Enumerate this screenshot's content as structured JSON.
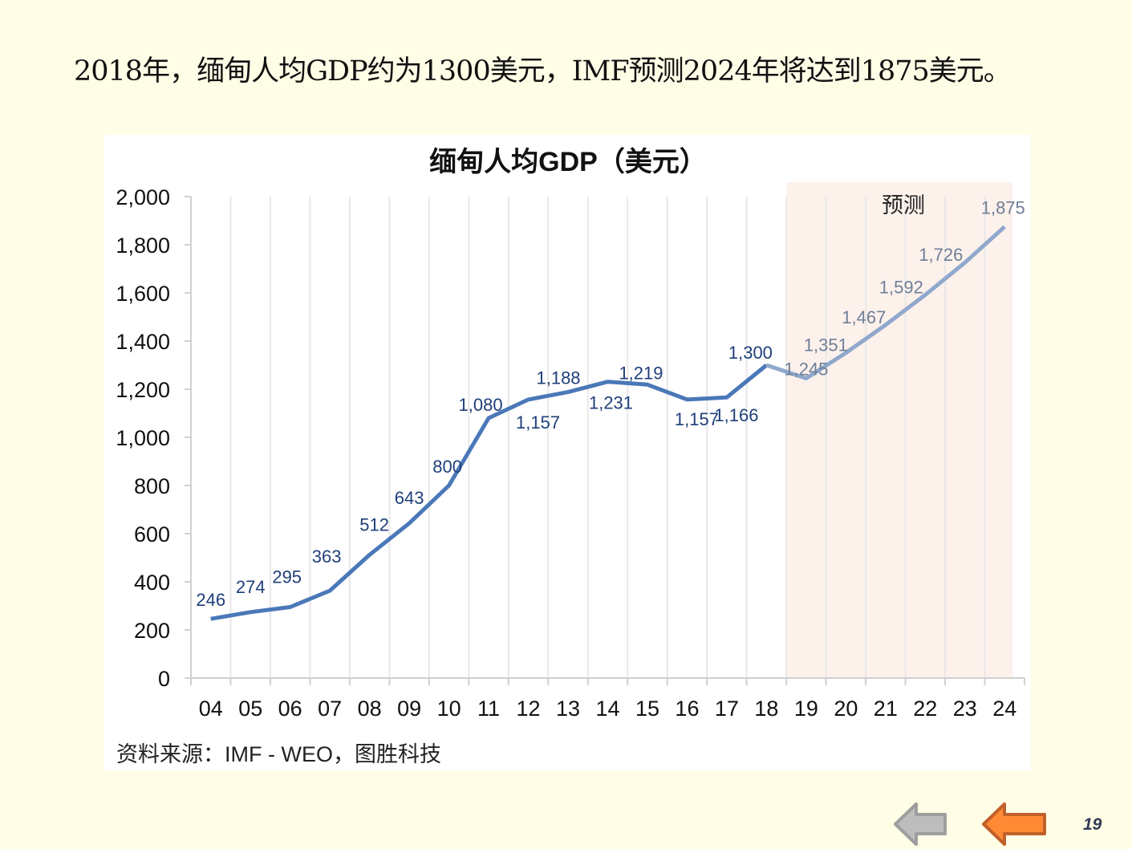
{
  "headline": "2018年，缅甸人均GDP约为1300美元，IMF预测2024年将达到1875美元。",
  "page_number": "19",
  "nav": {
    "prev_icon": "arrow-left-gray",
    "back_icon": "arrow-left-orange"
  },
  "colors": {
    "line": "#4a78b8",
    "forecast_line": "#8fa8cc",
    "forecast_bg": "#fdf1ec",
    "label": "#1f3f7a",
    "forecast_label": "#6f7f99"
  },
  "chart_data": {
    "type": "line",
    "title": "缅甸人均GDP（美元）",
    "xlabel": "",
    "ylabel": "",
    "ylim": [
      0,
      2000
    ],
    "yticks": [
      "0",
      "200",
      "400",
      "600",
      "800",
      "1,000",
      "1,200",
      "1,400",
      "1,600",
      "1,800",
      "2,000"
    ],
    "ytick_values": [
      0,
      200,
      400,
      600,
      800,
      1000,
      1200,
      1400,
      1600,
      1800,
      2000
    ],
    "categories": [
      "04",
      "05",
      "06",
      "07",
      "08",
      "09",
      "10",
      "11",
      "12",
      "13",
      "14",
      "15",
      "16",
      "17",
      "18",
      "19",
      "20",
      "21",
      "22",
      "23",
      "24"
    ],
    "values": [
      246,
      274,
      295,
      363,
      512,
      643,
      800,
      1080,
      1157,
      1188,
      1231,
      1219,
      1157,
      1166,
      1300,
      1245,
      1351,
      1467,
      1592,
      1726,
      1875
    ],
    "labels": [
      "246",
      "274",
      "295",
      "363",
      "512",
      "643",
      "800",
      "1,080",
      "1,157",
      "1,188",
      "1,231",
      "1,219",
      "1,157",
      "1,166",
      "1,300",
      "1,245",
      "1,351",
      "1,467",
      "1,592",
      "1,726",
      "1,875"
    ],
    "forecast_start_index": 15,
    "forecast_label": "预测",
    "grid": "vertical",
    "source": "资料来源：IMF - WEO，图胜科技"
  }
}
